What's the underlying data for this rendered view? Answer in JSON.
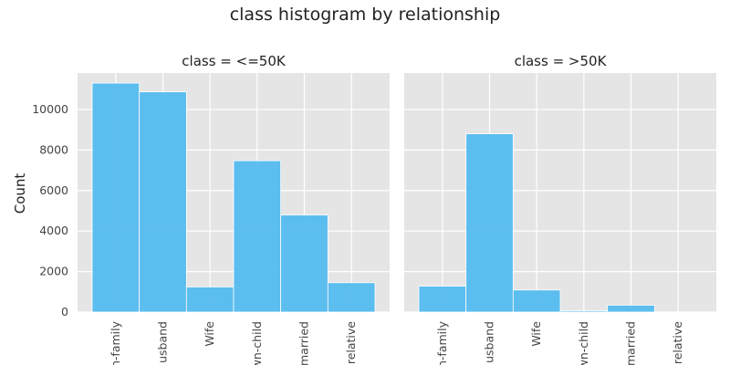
{
  "title": "class histogram by relationship",
  "ylabel": "Count",
  "colors": {
    "bar": "#4db8ef",
    "bar_edge": "#ffffff",
    "panel_bg": "#e5e5e5",
    "grid": "#ffffff",
    "text": "#222222",
    "tick_text": "#444444"
  },
  "chart_data": [
    {
      "type": "bar",
      "title": "class = <=50K",
      "categories": [
        "Not-in-family",
        "Husband",
        "Wife",
        "Own-child",
        "Unmarried",
        "Other-relative"
      ],
      "tick_labels": [
        "n-family",
        "usband",
        "Wife",
        "wn-child",
        "married",
        "relative"
      ],
      "values": [
        11300,
        10870,
        1240,
        7470,
        4790,
        1450
      ],
      "ylim": [
        0,
        11800
      ],
      "yticks": [
        0,
        2000,
        4000,
        6000,
        8000,
        10000
      ],
      "ylabel": "Count",
      "grid": true
    },
    {
      "type": "bar",
      "title": "class = >50K",
      "categories": [
        "Not-in-family",
        "Husband",
        "Wife",
        "Own-child",
        "Unmarried",
        "Other-relative"
      ],
      "tick_labels": [
        "n-family",
        "usband",
        "Wife",
        "wn-child",
        "married",
        "relative"
      ],
      "values": [
        1280,
        8800,
        1090,
        60,
        340,
        0
      ],
      "ylim": [
        0,
        11800
      ],
      "yticks": [
        0,
        2000,
        4000,
        6000,
        8000,
        10000
      ],
      "ylabel": "",
      "grid": true
    }
  ]
}
